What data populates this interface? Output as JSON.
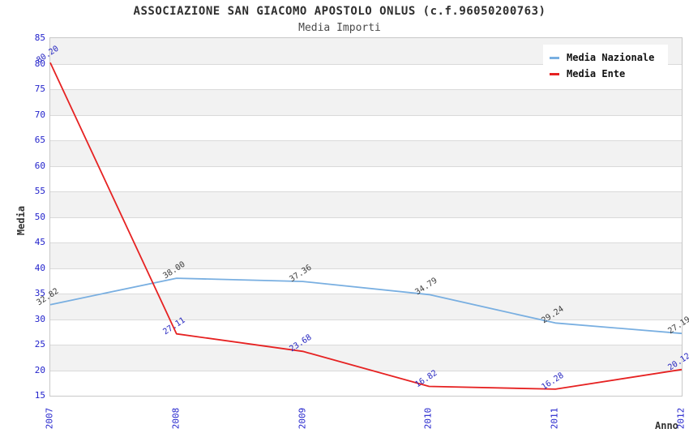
{
  "header": {
    "title": "ASSOCIAZIONE SAN GIACOMO APOSTOLO ONLUS (c.f.96050200763)",
    "subtitle": "Media Importi"
  },
  "chart_data": {
    "type": "line",
    "title": "ASSOCIAZIONE SAN GIACOMO APOSTOLO ONLUS (c.f.96050200763)",
    "subtitle": "Media Importi",
    "xlabel": "Anno",
    "ylabel": "Media",
    "categories": [
      "2007",
      "2008",
      "2009",
      "2010",
      "2011",
      "2012"
    ],
    "series": [
      {
        "name": "Media Nazionale",
        "values": [
          32.82,
          38.0,
          37.36,
          34.79,
          29.24,
          27.19
        ],
        "line_color": "#79afe1",
        "label_color": "#3c3c3c"
      },
      {
        "name": "Media Ente",
        "values": [
          80.2,
          27.11,
          23.68,
          16.82,
          16.28,
          20.12
        ],
        "line_color": "#e62222",
        "label_color": "#2626c0"
      }
    ],
    "ylim": [
      15,
      85
    ],
    "ytick_step": 5,
    "grid": true,
    "band_color": "#f2f2f2",
    "tick_color": "#2323cc",
    "legend_position": "top-right"
  }
}
